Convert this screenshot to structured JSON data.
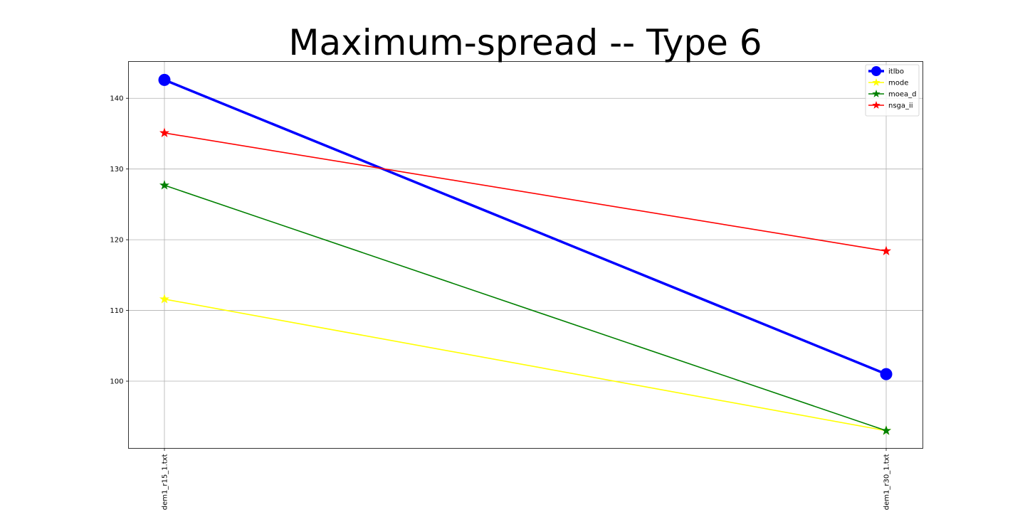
{
  "chart_data": {
    "type": "line",
    "title": "Maximum-spread -- Type 6",
    "xlabel": "",
    "ylabel": "",
    "categories": [
      "dem1_r15_1.txt",
      "dem1_r30_1.txt"
    ],
    "yticks": [
      100,
      110,
      120,
      130,
      140
    ],
    "ylim": [
      90.5,
      145.2
    ],
    "grid": true,
    "legend_position": "top-right",
    "series": [
      {
        "name": "itlbo",
        "values": [
          142.6,
          101.0
        ],
        "color": "#0000ff",
        "marker": "circle"
      },
      {
        "name": "mode",
        "values": [
          111.6,
          93.0
        ],
        "color": "#ffff00",
        "marker": "star"
      },
      {
        "name": "moea_d",
        "values": [
          127.7,
          93.0
        ],
        "color": "#008000",
        "marker": "star"
      },
      {
        "name": "nsga_ii",
        "values": [
          135.1,
          118.4
        ],
        "color": "#ff0000",
        "marker": "star"
      }
    ]
  }
}
